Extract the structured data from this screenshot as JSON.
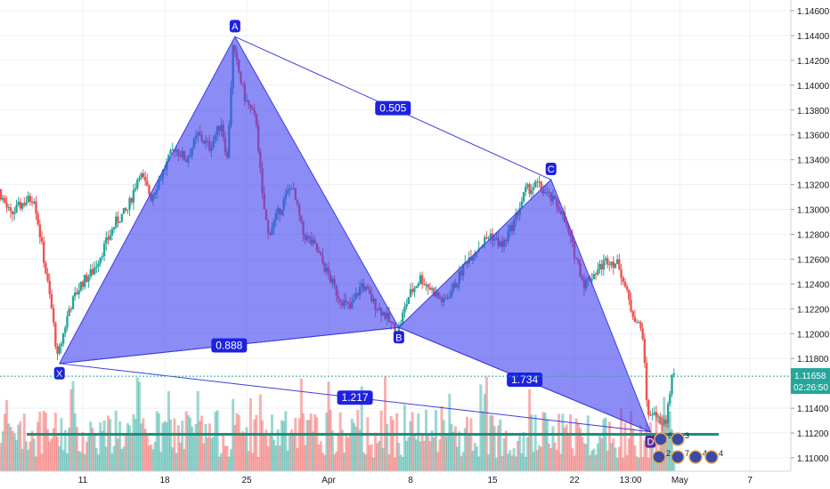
{
  "chart_data": {
    "type": "candlestick",
    "symbol_note": "",
    "price_axis": {
      "min": 1.109,
      "max": 1.1465,
      "ticks": [
        "1.14600",
        "1.14400",
        "1.14200",
        "1.14000",
        "1.13800",
        "1.13600",
        "1.13400",
        "1.13200",
        "1.13000",
        "1.12800",
        "1.12600",
        "1.12400",
        "1.12200",
        "1.12000",
        "1.11800",
        "1.11400",
        "1.11200",
        "1.11000"
      ],
      "current_price": "1.11658",
      "current_price_value": 1.11658,
      "countdown": "02:26:50"
    },
    "time_axis": {
      "range_days": [
        -2,
        47
      ],
      "labels": [
        {
          "text": "11",
          "day": 10
        },
        {
          "text": "18",
          "day": 17
        },
        {
          "text": "25",
          "day": 24
        },
        {
          "text": "Apr",
          "day": 31
        },
        {
          "text": "8",
          "day": 38
        },
        {
          "text": "15",
          "day": 45
        },
        {
          "text": "22",
          "day": 52
        },
        {
          "text": "13:00",
          "day": 56.8
        },
        {
          "text": "May",
          "day": 61
        },
        {
          "text": "7",
          "day": 67
        }
      ]
    },
    "pattern": {
      "points": [
        {
          "label": "X",
          "day": 8.0,
          "price": 1.1176
        },
        {
          "label": "A",
          "day": 23.0,
          "price": 1.1439
        },
        {
          "label": "B",
          "day": 37.0,
          "price": 1.1205
        },
        {
          "label": "C",
          "day": 50.0,
          "price": 1.1324
        },
        {
          "label": "D",
          "day": 58.5,
          "price": 1.1121
        }
      ],
      "ratios": [
        {
          "text": "0.888",
          "from": "X",
          "to": "B"
        },
        {
          "text": "0.505",
          "from": "A",
          "to": "C"
        },
        {
          "text": "1.734",
          "from": "B",
          "to": "D"
        },
        {
          "text": "1.217",
          "from": "X",
          "to": "D"
        }
      ]
    },
    "support_level": 1.1119,
    "price_path": [
      [
        -2,
        1.1385
      ],
      [
        -1,
        1.136
      ],
      [
        0,
        1.134
      ],
      [
        1,
        1.132
      ],
      [
        2,
        1.13
      ],
      [
        3,
        1.1315
      ],
      [
        4,
        1.1295
      ],
      [
        5,
        1.1305
      ],
      [
        6,
        1.131
      ],
      [
        7,
        1.125
      ],
      [
        7.5,
        1.122
      ],
      [
        8,
        1.118
      ],
      [
        9,
        1.122
      ],
      [
        10,
        1.124
      ],
      [
        11,
        1.125
      ],
      [
        12,
        1.127
      ],
      [
        13,
        1.129
      ],
      [
        14,
        1.13
      ],
      [
        15,
        1.133
      ],
      [
        16,
        1.131
      ],
      [
        17,
        1.133
      ],
      [
        18,
        1.135
      ],
      [
        19,
        1.134
      ],
      [
        20,
        1.136
      ],
      [
        21,
        1.135
      ],
      [
        22,
        1.137
      ],
      [
        22.5,
        1.134
      ],
      [
        23,
        1.143
      ],
      [
        24,
        1.139
      ],
      [
        25,
        1.137
      ],
      [
        25.5,
        1.131
      ],
      [
        26,
        1.128
      ],
      [
        27,
        1.13
      ],
      [
        28,
        1.132
      ],
      [
        29,
        1.128
      ],
      [
        30,
        1.127
      ],
      [
        31,
        1.125
      ],
      [
        32,
        1.123
      ],
      [
        33,
        1.122
      ],
      [
        34,
        1.124
      ],
      [
        35,
        1.1225
      ],
      [
        36,
        1.1215
      ],
      [
        37,
        1.12
      ],
      [
        38,
        1.123
      ],
      [
        39,
        1.1245
      ],
      [
        40,
        1.1235
      ],
      [
        41,
        1.1225
      ],
      [
        42,
        1.124
      ],
      [
        43,
        1.126
      ],
      [
        44,
        1.127
      ],
      [
        45,
        1.128
      ],
      [
        46,
        1.127
      ],
      [
        47,
        1.129
      ],
      [
        48,
        1.1315
      ],
      [
        49,
        1.132
      ],
      [
        50,
        1.131
      ],
      [
        51,
        1.13
      ],
      [
        52,
        1.127
      ],
      [
        53,
        1.124
      ],
      [
        54,
        1.125
      ],
      [
        55,
        1.126
      ],
      [
        56,
        1.1255
      ],
      [
        57,
        1.122
      ],
      [
        58,
        1.12
      ],
      [
        58.3,
        1.115
      ],
      [
        58.6,
        1.113
      ],
      [
        59,
        1.114
      ],
      [
        59.5,
        1.1125
      ],
      [
        60,
        1.113
      ],
      [
        60.5,
        1.11658
      ]
    ]
  }
}
